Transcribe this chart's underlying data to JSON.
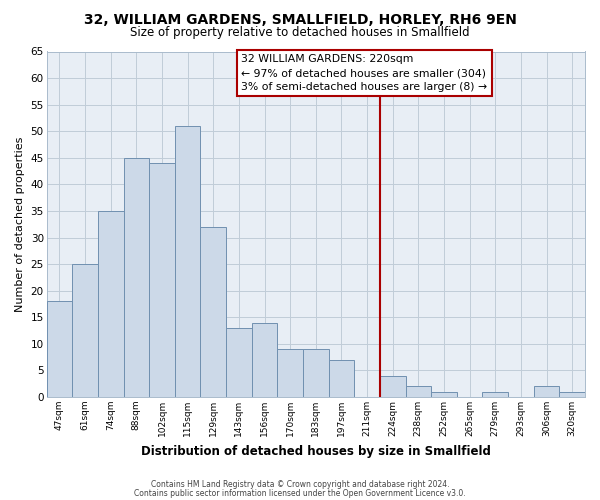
{
  "title": "32, WILLIAM GARDENS, SMALLFIELD, HORLEY, RH6 9EN",
  "subtitle": "Size of property relative to detached houses in Smallfield",
  "xlabel": "Distribution of detached houses by size in Smallfield",
  "ylabel": "Number of detached properties",
  "bar_labels": [
    "47sqm",
    "61sqm",
    "74sqm",
    "88sqm",
    "102sqm",
    "115sqm",
    "129sqm",
    "143sqm",
    "156sqm",
    "170sqm",
    "183sqm",
    "197sqm",
    "211sqm",
    "224sqm",
    "238sqm",
    "252sqm",
    "265sqm",
    "279sqm",
    "293sqm",
    "306sqm",
    "320sqm"
  ],
  "bar_values": [
    18,
    25,
    35,
    45,
    44,
    51,
    32,
    13,
    14,
    9,
    9,
    7,
    0,
    4,
    2,
    1,
    0,
    1,
    0,
    2,
    1
  ],
  "bar_color": "#ccd9e8",
  "bar_edge_color": "#7090b0",
  "vline_color": "#aa0000",
  "annotation_title": "32 WILLIAM GARDENS: 220sqm",
  "annotation_line1": "← 97% of detached houses are smaller (304)",
  "annotation_line2": "3% of semi-detached houses are larger (8) →",
  "annotation_box_color": "#ffffff",
  "annotation_box_edge": "#aa0000",
  "ylim": [
    0,
    65
  ],
  "yticks": [
    0,
    5,
    10,
    15,
    20,
    25,
    30,
    35,
    40,
    45,
    50,
    55,
    60,
    65
  ],
  "footnote1": "Contains HM Land Registry data © Crown copyright and database right 2024.",
  "footnote2": "Contains public sector information licensed under the Open Government Licence v3.0.",
  "bg_color": "#ffffff",
  "plot_bg_color": "#e8eef5",
  "grid_color": "#c0ccd8"
}
